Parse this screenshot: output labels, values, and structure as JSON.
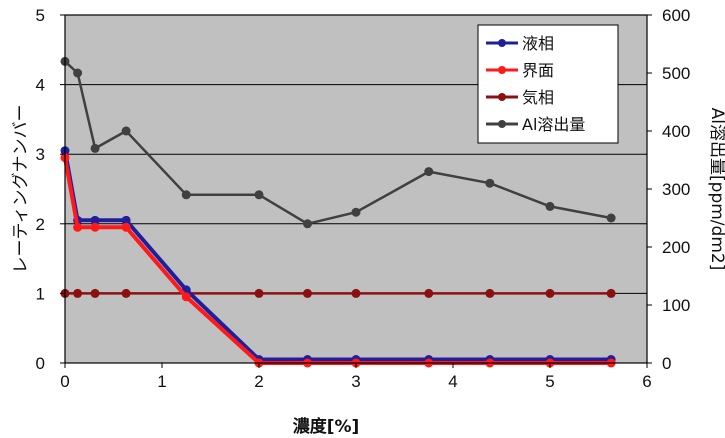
{
  "chart_data": {
    "type": "line",
    "xlabel": "濃度[%]",
    "ylabel_left": "レーティングナンバー",
    "ylabel_right": "Al溶出量[ppm/dm2]",
    "xlim": [
      0,
      6
    ],
    "ylim_left": [
      0,
      5
    ],
    "ylim_right": [
      0,
      600
    ],
    "x_ticks": [
      "0",
      "1",
      "2",
      "3",
      "4",
      "5",
      "6"
    ],
    "y_left_ticks": [
      "0",
      "1",
      "2",
      "3",
      "4",
      "5"
    ],
    "y_right_ticks": [
      "0",
      "100",
      "200",
      "300",
      "400",
      "500",
      "600"
    ],
    "grid": "horizontal",
    "plot_background": "#c0c0c0",
    "legend_position": "top-right",
    "series": [
      {
        "name": "液相",
        "axis": "left",
        "color": "#1f1f9e",
        "x": [
          0,
          0.13,
          0.31,
          0.63,
          1.25,
          2.0,
          2.5,
          3.0,
          3.75,
          4.38,
          5.0,
          5.63
        ],
        "y": [
          3.05,
          2.05,
          2.05,
          2.05,
          1.05,
          0.05,
          0.05,
          0.05,
          0.05,
          0.05,
          0.05,
          0.05
        ]
      },
      {
        "name": "界面",
        "axis": "left",
        "color": "#ff1a1a",
        "x": [
          0,
          0.13,
          0.31,
          0.63,
          1.25,
          2.0,
          2.5,
          3.0,
          3.75,
          4.38,
          5.0,
          5.63
        ],
        "y": [
          2.95,
          1.95,
          1.95,
          1.95,
          0.95,
          0.0,
          0.0,
          0.0,
          0.0,
          0.0,
          0.0,
          0.0
        ]
      },
      {
        "name": "気相",
        "axis": "left",
        "color": "#8b1010",
        "x": [
          0,
          0.13,
          0.31,
          0.63,
          1.25,
          2.0,
          2.5,
          3.0,
          3.75,
          4.38,
          5.0,
          5.63
        ],
        "y": [
          1,
          1,
          1,
          1,
          1,
          1,
          1,
          1,
          1,
          1,
          1,
          1
        ]
      },
      {
        "name": "Al溶出量",
        "axis": "right",
        "color": "#404040",
        "x": [
          0,
          0.13,
          0.31,
          0.63,
          1.25,
          2.0,
          2.5,
          3.0,
          3.75,
          4.38,
          5.0,
          5.63
        ],
        "y": [
          520,
          500,
          370,
          400,
          290,
          290,
          240,
          260,
          330,
          310,
          270,
          250
        ]
      }
    ]
  }
}
